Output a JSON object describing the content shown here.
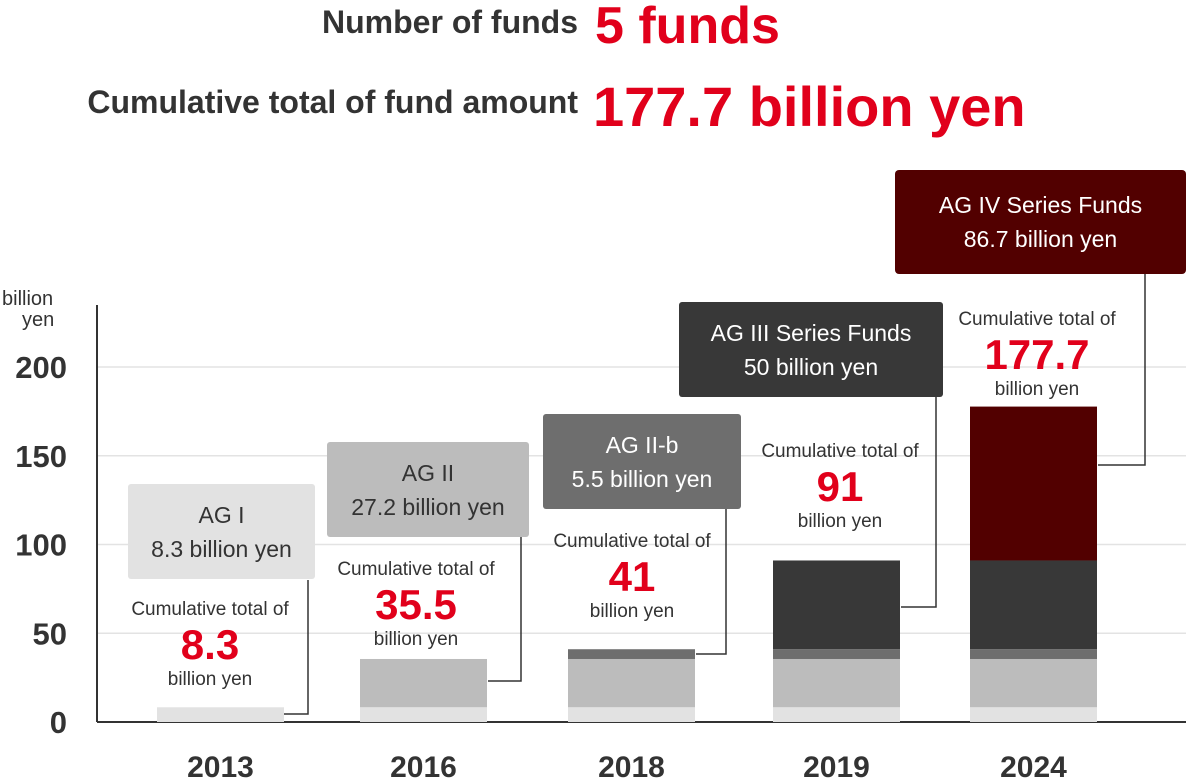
{
  "header": {
    "funds_label": "Number of funds",
    "funds_value": "5 funds",
    "amount_label": "Cumulative total of fund amount",
    "amount_value": "177.7",
    "amount_unit": "billion yen"
  },
  "chart_data": {
    "type": "bar",
    "stacked": true,
    "ylabel": "billion\nyen",
    "ylim": [
      0,
      200
    ],
    "yticks": [
      0,
      50,
      100,
      150,
      200
    ],
    "grid": true,
    "categories": [
      "2013",
      "2016",
      "2018",
      "2019",
      "2024"
    ],
    "series": [
      {
        "name": "AG I",
        "values": [
          8.3,
          8.3,
          8.3,
          8.3,
          8.3
        ],
        "color": "#e2e2e2"
      },
      {
        "name": "AG II",
        "values": [
          0,
          27.2,
          27.2,
          27.2,
          27.2
        ],
        "color": "#bcbcbc"
      },
      {
        "name": "AG II-b",
        "values": [
          0,
          0,
          5.5,
          5.5,
          5.5
        ],
        "color": "#6e6e6e"
      },
      {
        "name": "AG III Series Funds",
        "values": [
          0,
          0,
          0,
          50,
          50
        ],
        "color": "#383838"
      },
      {
        "name": "AG IV Series Funds",
        "values": [
          0,
          0,
          0,
          0,
          86.7
        ],
        "color": "#520000"
      }
    ],
    "cumulative_prefix": "Cumulative total of",
    "cumulative_suffix": "billion yen",
    "cumulative_totals": [
      "8.3",
      "35.5",
      "41",
      "91",
      "177.7"
    ],
    "fund_boxes": [
      {
        "line1": "AG I",
        "line2": "8.3 billion yen",
        "bg": "#e2e2e2",
        "fg": "#333333"
      },
      {
        "line1": "AG II",
        "line2": "27.2 billion yen",
        "bg": "#bcbcbc",
        "fg": "#333333"
      },
      {
        "line1": "AG II-b",
        "line2": "5.5 billion yen",
        "bg": "#6e6e6e",
        "fg": "#ffffff"
      },
      {
        "line1": "AG III Series Funds",
        "line2": "50 billion yen",
        "bg": "#383838",
        "fg": "#ffffff"
      },
      {
        "line1": "AG IV Series Funds",
        "line2": "86.7 billion yen",
        "bg": "#520000",
        "fg": "#ffffff"
      }
    ],
    "accent_color": "#e1001b"
  }
}
